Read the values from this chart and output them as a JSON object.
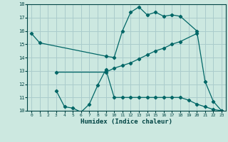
{
  "title": "",
  "xlabel": "Humidex (Indice chaleur)",
  "bg_color": "#cce8e0",
  "grid_color": "#aacccc",
  "line_color": "#006666",
  "xlim": [
    -0.5,
    23.5
  ],
  "ylim": [
    10,
    18
  ],
  "xticks": [
    0,
    1,
    2,
    3,
    4,
    5,
    6,
    7,
    8,
    9,
    10,
    11,
    12,
    13,
    14,
    15,
    16,
    17,
    18,
    19,
    20,
    21,
    22,
    23
  ],
  "yticks": [
    10,
    11,
    12,
    13,
    14,
    15,
    16,
    17,
    18
  ],
  "line1_x": [
    0,
    1,
    9,
    10,
    11,
    12,
    13,
    14,
    15,
    16,
    17,
    18,
    20,
    21,
    22,
    23
  ],
  "line1_y": [
    15.8,
    15.1,
    14.1,
    14.0,
    16.0,
    17.4,
    17.8,
    17.2,
    17.4,
    17.1,
    17.2,
    17.1,
    16.0,
    12.2,
    10.7,
    10.0
  ],
  "line2_x": [
    3,
    9,
    10,
    11,
    12,
    13,
    14,
    15,
    16,
    17,
    18,
    20
  ],
  "line2_y": [
    12.9,
    12.9,
    13.2,
    13.4,
    13.6,
    13.9,
    14.2,
    14.5,
    14.7,
    15.0,
    15.2,
    15.8
  ],
  "line3_x": [
    3,
    4,
    5,
    6,
    7,
    8,
    9,
    10,
    11,
    12,
    13,
    14,
    15,
    16,
    17,
    18,
    19,
    20,
    21,
    22,
    23
  ],
  "line3_y": [
    11.5,
    10.3,
    10.2,
    9.9,
    10.5,
    11.9,
    13.1,
    11.0,
    11.0,
    11.0,
    11.0,
    11.0,
    11.0,
    11.0,
    11.0,
    11.0,
    10.8,
    10.5,
    10.3,
    10.1,
    10.0
  ]
}
